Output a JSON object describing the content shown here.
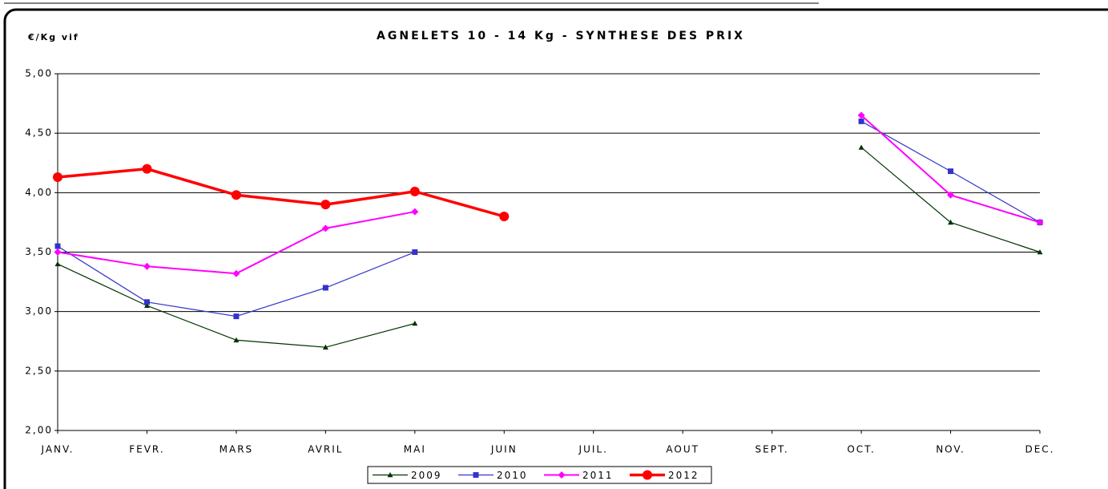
{
  "chart_data": {
    "type": "line",
    "title": "AGNELETS 10 - 14 Kg - SYNTHESE DES PRIX",
    "y_label": "€/Kg vif",
    "categories": [
      "JANV.",
      "FEVR.",
      "MARS",
      "AVRIL",
      "MAI",
      "JUIN",
      "JUIL.",
      "AOUT",
      "SEPT.",
      "OCT.",
      "NOV.",
      "DEC."
    ],
    "series": [
      {
        "name": "2009",
        "color": "#003300",
        "marker": "triangle",
        "values": [
          3.4,
          3.05,
          2.76,
          2.7,
          2.9,
          null,
          null,
          null,
          null,
          4.38,
          3.75,
          3.5
        ]
      },
      {
        "name": "2010",
        "color": "#3333cc",
        "marker": "square",
        "values": [
          3.55,
          3.08,
          2.96,
          3.2,
          3.5,
          null,
          null,
          null,
          null,
          4.6,
          4.18,
          3.75
        ]
      },
      {
        "name": "2011",
        "color": "#ff00ff",
        "marker": "diamond",
        "values": [
          3.5,
          3.38,
          3.32,
          3.7,
          3.84,
          null,
          null,
          null,
          null,
          4.65,
          3.98,
          3.75
        ]
      },
      {
        "name": "2012",
        "color": "#ff0000",
        "marker": "circle",
        "values": [
          4.13,
          4.2,
          3.98,
          3.9,
          4.01,
          3.8,
          null,
          null,
          null,
          null,
          null,
          null
        ]
      }
    ],
    "ylim": [
      2,
      5
    ],
    "yticks": [
      {
        "value": 2,
        "label": "2,00"
      },
      {
        "value": 2.5,
        "label": "2,50"
      },
      {
        "value": 3,
        "label": "3,00"
      },
      {
        "value": 3.5,
        "label": "3,50"
      },
      {
        "value": 4,
        "label": "4,00"
      },
      {
        "value": 4.5,
        "label": "4,50"
      },
      {
        "value": 5,
        "label": "5,00"
      }
    ],
    "grid": true,
    "legend": "bottom"
  }
}
